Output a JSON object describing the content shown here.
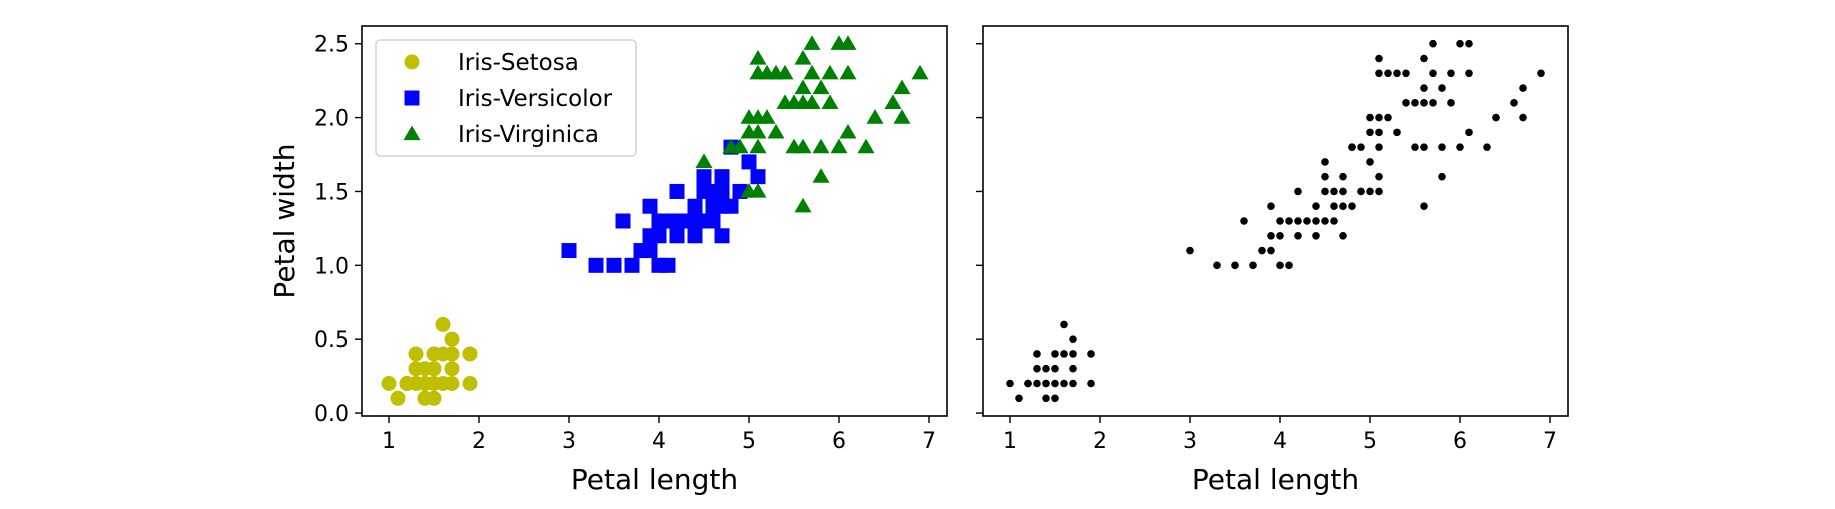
{
  "chart_data": [
    {
      "type": "scatter",
      "xlabel": "Petal length",
      "ylabel": "Petal width",
      "xlim": [
        0.7,
        7.2
      ],
      "ylim": [
        -0.02,
        2.62
      ],
      "xticks": [
        "1",
        "2",
        "3",
        "4",
        "5",
        "6",
        "7"
      ],
      "yticks": [
        "0.0",
        "0.5",
        "1.0",
        "1.5",
        "2.0",
        "2.5"
      ],
      "grid": false,
      "legend": "top-left",
      "series": [
        {
          "name": "Iris-Setosa",
          "marker": "circle",
          "color": "#bfbf00",
          "points": [
            [
              1.0,
              0.2
            ],
            [
              1.1,
              0.1
            ],
            [
              1.2,
              0.2
            ],
            [
              1.3,
              0.2
            ],
            [
              1.3,
              0.3
            ],
            [
              1.3,
              0.4
            ],
            [
              1.4,
              0.2
            ],
            [
              1.4,
              0.3
            ],
            [
              1.4,
              0.2
            ],
            [
              1.5,
              0.2
            ],
            [
              1.5,
              0.1
            ],
            [
              1.5,
              0.4
            ],
            [
              1.5,
              0.3
            ],
            [
              1.6,
              0.2
            ],
            [
              1.6,
              0.4
            ],
            [
              1.6,
              0.6
            ],
            [
              1.7,
              0.2
            ],
            [
              1.7,
              0.3
            ],
            [
              1.7,
              0.4
            ],
            [
              1.7,
              0.5
            ],
            [
              1.9,
              0.2
            ],
            [
              1.9,
              0.4
            ],
            [
              1.4,
              0.1
            ],
            [
              1.2,
              0.2
            ]
          ]
        },
        {
          "name": "Iris-Versicolor",
          "marker": "square",
          "color": "#0000ff",
          "points": [
            [
              3.0,
              1.1
            ],
            [
              3.3,
              1.0
            ],
            [
              3.5,
              1.0
            ],
            [
              3.6,
              1.3
            ],
            [
              3.7,
              1.0
            ],
            [
              3.8,
              1.1
            ],
            [
              3.9,
              1.1
            ],
            [
              3.9,
              1.2
            ],
            [
              3.9,
              1.4
            ],
            [
              4.0,
              1.0
            ],
            [
              4.0,
              1.2
            ],
            [
              4.0,
              1.3
            ],
            [
              4.1,
              1.0
            ],
            [
              4.1,
              1.3
            ],
            [
              4.2,
              1.2
            ],
            [
              4.2,
              1.3
            ],
            [
              4.2,
              1.5
            ],
            [
              4.3,
              1.3
            ],
            [
              4.4,
              1.2
            ],
            [
              4.4,
              1.3
            ],
            [
              4.4,
              1.4
            ],
            [
              4.5,
              1.3
            ],
            [
              4.5,
              1.5
            ],
            [
              4.5,
              1.6
            ],
            [
              4.6,
              1.3
            ],
            [
              4.6,
              1.4
            ],
            [
              4.6,
              1.5
            ],
            [
              4.7,
              1.2
            ],
            [
              4.7,
              1.4
            ],
            [
              4.7,
              1.5
            ],
            [
              4.7,
              1.6
            ],
            [
              4.8,
              1.4
            ],
            [
              4.8,
              1.8
            ],
            [
              4.9,
              1.5
            ],
            [
              5.0,
              1.7
            ],
            [
              5.1,
              1.6
            ]
          ]
        },
        {
          "name": "Iris-Virginica",
          "marker": "triangle",
          "color": "#008000",
          "points": [
            [
              4.5,
              1.7
            ],
            [
              4.8,
              1.8
            ],
            [
              4.9,
              1.8
            ],
            [
              5.0,
              1.5
            ],
            [
              5.0,
              2.0
            ],
            [
              5.0,
              1.9
            ],
            [
              5.1,
              1.5
            ],
            [
              5.1,
              1.8
            ],
            [
              5.1,
              1.9
            ],
            [
              5.1,
              2.0
            ],
            [
              5.1,
              2.3
            ],
            [
              5.1,
              2.4
            ],
            [
              5.2,
              2.0
            ],
            [
              5.2,
              2.3
            ],
            [
              5.3,
              1.9
            ],
            [
              5.3,
              2.3
            ],
            [
              5.4,
              2.1
            ],
            [
              5.4,
              2.3
            ],
            [
              5.5,
              1.8
            ],
            [
              5.5,
              2.1
            ],
            [
              5.6,
              1.4
            ],
            [
              5.6,
              1.8
            ],
            [
              5.6,
              2.1
            ],
            [
              5.6,
              2.2
            ],
            [
              5.6,
              2.4
            ],
            [
              5.7,
              2.1
            ],
            [
              5.7,
              2.3
            ],
            [
              5.7,
              2.5
            ],
            [
              5.8,
              1.6
            ],
            [
              5.8,
              1.8
            ],
            [
              5.8,
              2.2
            ],
            [
              5.9,
              2.1
            ],
            [
              5.9,
              2.3
            ],
            [
              6.0,
              1.8
            ],
            [
              6.0,
              2.5
            ],
            [
              6.1,
              1.9
            ],
            [
              6.1,
              2.3
            ],
            [
              6.1,
              2.5
            ],
            [
              6.3,
              1.8
            ],
            [
              6.4,
              2.0
            ],
            [
              6.6,
              2.1
            ],
            [
              6.7,
              2.0
            ],
            [
              6.7,
              2.2
            ],
            [
              6.9,
              2.3
            ]
          ]
        }
      ]
    },
    {
      "type": "scatter",
      "xlabel": "Petal length",
      "ylabel": "",
      "xlim": [
        0.7,
        7.2
      ],
      "ylim": [
        -0.02,
        2.62
      ],
      "xticks": [
        "1",
        "2",
        "3",
        "4",
        "5",
        "6",
        "7"
      ],
      "yticks": [],
      "shared_y": true,
      "grid": false,
      "legend": "none",
      "series": [
        {
          "name": "",
          "marker": "dot",
          "color": "#000000",
          "source": "all points of the left panel, unlabeled"
        }
      ]
    }
  ]
}
